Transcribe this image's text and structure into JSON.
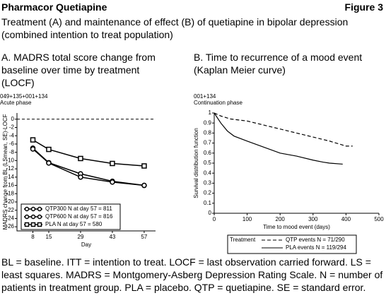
{
  "header": {
    "title": "Pharmacor Quetiapine",
    "figure": "Figure 3"
  },
  "caption": "Treatment (A) and maintenance of effect (B) of quetiapine in bipolar depression (combined intention to treat population)",
  "chart_data": [
    {
      "type": "line",
      "title": "A. MADRS total score change from baseline over time by treatment (LOCF)",
      "annotations": [
        "049+135+001+134",
        "Acute phase"
      ],
      "x_label": "Day",
      "y_label": "MADRS change from BL (LSmean, SE)-LOCF",
      "x": [
        8,
        15,
        29,
        43,
        57
      ],
      "xlim": [
        1,
        62
      ],
      "xticks": [
        8,
        15,
        29,
        43,
        57
      ],
      "ylim": [
        -27,
        1.5
      ],
      "yticks": [
        0,
        -2,
        -4,
        -6,
        -8,
        -10,
        -12,
        -14,
        -16,
        -18,
        -20,
        -22,
        -24,
        -26
      ],
      "reference_line": 0,
      "legend": "lower-left",
      "series": [
        {
          "name": "QTP300 N at day 57 = 811",
          "color": "#000000",
          "marker": "circle",
          "values": [
            -7,
            -10.5,
            -13.2,
            -15,
            -16
          ]
        },
        {
          "name": "QTP600 N at day 57 = 816",
          "color": "#000000",
          "marker": "circle",
          "values": [
            -7.2,
            -10.6,
            -14,
            -15.2,
            -16
          ]
        },
        {
          "name": "PLA N at day 57 = 580",
          "color": "#000000",
          "marker": "square",
          "values": [
            -5,
            -7.3,
            -9.5,
            -10.7,
            -11.3
          ]
        }
      ]
    },
    {
      "type": "line",
      "title": "B. Time to recurrence of a mood event (Kaplan Meier curve)",
      "annotations": [
        "001+134",
        "Continuation phase"
      ],
      "x_label": "Time to mood event (days)",
      "y_label": "Survival distribution function",
      "xlim": [
        0,
        500
      ],
      "xticks": [
        0,
        100,
        200,
        300,
        400,
        500
      ],
      "ylim": [
        0,
        1
      ],
      "yticks": [
        0,
        0.1,
        0.2,
        0.3,
        0.4,
        0.5,
        0.6,
        0.7,
        0.8,
        0.9,
        1
      ],
      "legend_title": "Treatment",
      "legend": "below",
      "series": [
        {
          "name": "QTP events N = 71/290",
          "color": "#000000",
          "dash": true,
          "x": [
            0,
            20,
            50,
            100,
            150,
            200,
            250,
            300,
            350,
            400,
            420
          ],
          "values": [
            1,
            0.97,
            0.94,
            0.92,
            0.88,
            0.84,
            0.8,
            0.76,
            0.72,
            0.67,
            0.67
          ]
        },
        {
          "name": "PLA events N = 119/294",
          "color": "#000000",
          "dash": false,
          "x": [
            0,
            20,
            40,
            60,
            100,
            150,
            200,
            250,
            300,
            330,
            350,
            390
          ],
          "values": [
            1,
            0.9,
            0.82,
            0.77,
            0.72,
            0.66,
            0.6,
            0.57,
            0.53,
            0.51,
            0.5,
            0.49
          ]
        }
      ]
    }
  ],
  "footnote": "BL = baseline. ITT = intention to treat. LOCF = last observation carried forward. LS = least squares. MADRS = Montgomery-Asberg Depression Rating Scale. N = number of patients in treatment group. PLA = placebo. QTP = quetiapine. SE = standard error."
}
